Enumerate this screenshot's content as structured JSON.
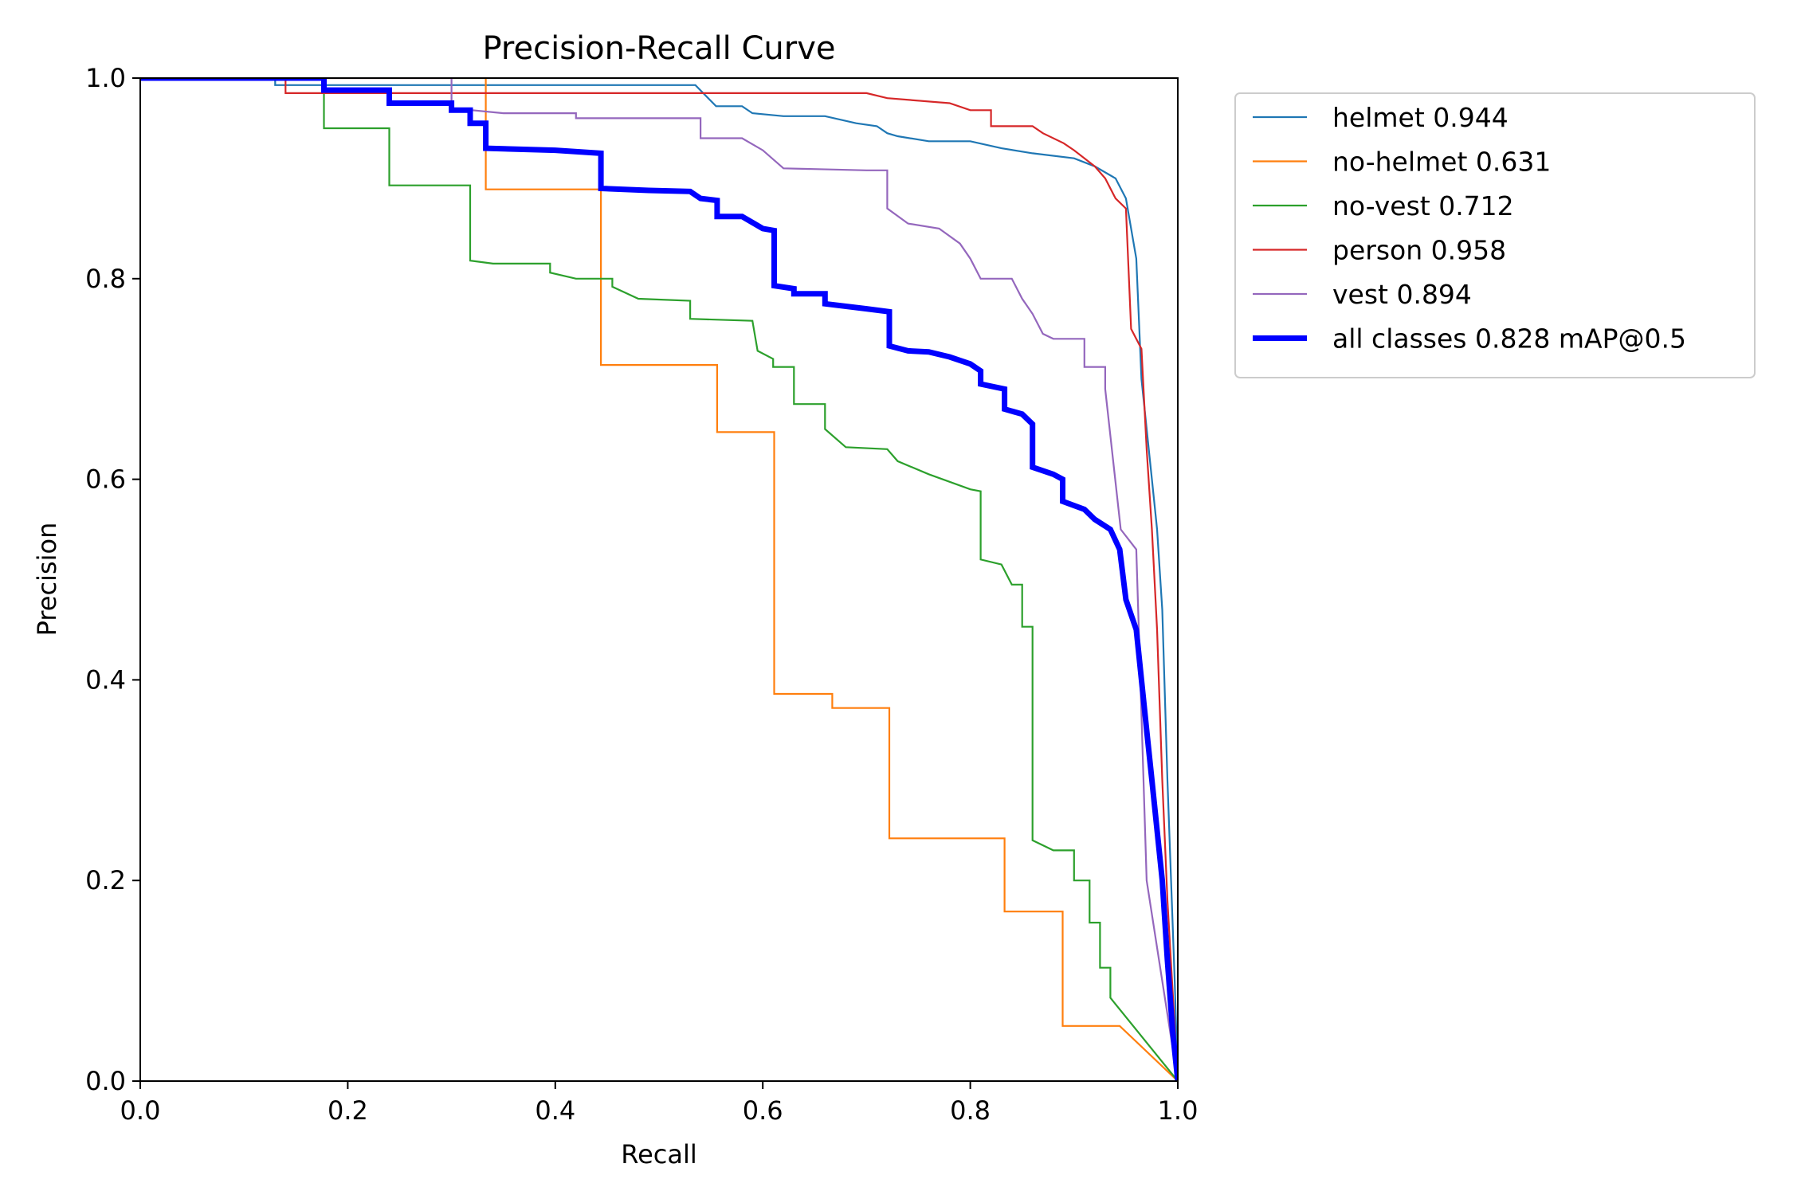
{
  "chart_data": {
    "type": "line",
    "title": "Precision-Recall Curve",
    "xlabel": "Recall",
    "ylabel": "Precision",
    "xlim": [
      0,
      1
    ],
    "ylim": [
      0,
      1
    ],
    "xticks": [
      "0.0",
      "0.2",
      "0.4",
      "0.6",
      "0.8",
      "1.0"
    ],
    "yticks": [
      "0.0",
      "0.2",
      "0.4",
      "0.6",
      "0.8",
      "1.0"
    ],
    "grid": false,
    "legend_position": "outside-top-right",
    "series": [
      {
        "name": "helmet",
        "legend_label": "helmet 0.944",
        "color": "#1f77b4",
        "style": "thin",
        "points": [
          [
            0,
            1
          ],
          [
            0.13,
            1
          ],
          [
            0.13,
            0.993
          ],
          [
            0.535,
            0.993
          ],
          [
            0.555,
            0.972
          ],
          [
            0.58,
            0.972
          ],
          [
            0.59,
            0.965
          ],
          [
            0.62,
            0.962
          ],
          [
            0.66,
            0.962
          ],
          [
            0.69,
            0.955
          ],
          [
            0.71,
            0.952
          ],
          [
            0.72,
            0.945
          ],
          [
            0.73,
            0.942
          ],
          [
            0.76,
            0.937
          ],
          [
            0.8,
            0.937
          ],
          [
            0.83,
            0.93
          ],
          [
            0.86,
            0.925
          ],
          [
            0.9,
            0.92
          ],
          [
            0.92,
            0.912
          ],
          [
            0.94,
            0.9
          ],
          [
            0.95,
            0.88
          ],
          [
            0.96,
            0.82
          ],
          [
            0.965,
            0.7
          ],
          [
            0.975,
            0.6
          ],
          [
            0.98,
            0.55
          ],
          [
            0.985,
            0.47
          ],
          [
            0.99,
            0.3
          ],
          [
            0.997,
            0.1
          ],
          [
            1,
            0
          ]
        ]
      },
      {
        "name": "no-helmet",
        "legend_label": "no-helmet 0.631",
        "color": "#ff7f0e",
        "style": "thin",
        "points": [
          [
            0,
            1
          ],
          [
            0.333,
            1
          ],
          [
            0.333,
            0.889
          ],
          [
            0.444,
            0.889
          ],
          [
            0.444,
            0.714
          ],
          [
            0.556,
            0.714
          ],
          [
            0.556,
            0.647
          ],
          [
            0.611,
            0.647
          ],
          [
            0.611,
            0.386
          ],
          [
            0.667,
            0.386
          ],
          [
            0.667,
            0.372
          ],
          [
            0.722,
            0.372
          ],
          [
            0.722,
            0.242
          ],
          [
            0.833,
            0.242
          ],
          [
            0.833,
            0.169
          ],
          [
            0.889,
            0.169
          ],
          [
            0.889,
            0.055
          ],
          [
            0.944,
            0.055
          ],
          [
            1,
            0
          ]
        ]
      },
      {
        "name": "no-vest",
        "legend_label": "no-vest 0.712",
        "color": "#2ca02c",
        "style": "thin",
        "points": [
          [
            0,
            1
          ],
          [
            0.177,
            1
          ],
          [
            0.177,
            0.95
          ],
          [
            0.24,
            0.95
          ],
          [
            0.24,
            0.893
          ],
          [
            0.318,
            0.893
          ],
          [
            0.318,
            0.818
          ],
          [
            0.34,
            0.815
          ],
          [
            0.395,
            0.815
          ],
          [
            0.395,
            0.806
          ],
          [
            0.42,
            0.8
          ],
          [
            0.455,
            0.8
          ],
          [
            0.455,
            0.792
          ],
          [
            0.48,
            0.78
          ],
          [
            0.53,
            0.778
          ],
          [
            0.53,
            0.76
          ],
          [
            0.59,
            0.758
          ],
          [
            0.595,
            0.728
          ],
          [
            0.61,
            0.72
          ],
          [
            0.61,
            0.712
          ],
          [
            0.63,
            0.712
          ],
          [
            0.63,
            0.675
          ],
          [
            0.66,
            0.675
          ],
          [
            0.66,
            0.65
          ],
          [
            0.68,
            0.632
          ],
          [
            0.72,
            0.63
          ],
          [
            0.73,
            0.618
          ],
          [
            0.76,
            0.605
          ],
          [
            0.8,
            0.59
          ],
          [
            0.81,
            0.588
          ],
          [
            0.81,
            0.52
          ],
          [
            0.83,
            0.515
          ],
          [
            0.84,
            0.495
          ],
          [
            0.85,
            0.495
          ],
          [
            0.85,
            0.453
          ],
          [
            0.86,
            0.453
          ],
          [
            0.86,
            0.24
          ],
          [
            0.88,
            0.23
          ],
          [
            0.9,
            0.23
          ],
          [
            0.9,
            0.2
          ],
          [
            0.915,
            0.2
          ],
          [
            0.915,
            0.158
          ],
          [
            0.925,
            0.158
          ],
          [
            0.925,
            0.113
          ],
          [
            0.935,
            0.113
          ],
          [
            0.935,
            0.083
          ],
          [
            1,
            0
          ]
        ]
      },
      {
        "name": "person",
        "legend_label": "person 0.958",
        "color": "#d62728",
        "style": "thin",
        "points": [
          [
            0,
            1
          ],
          [
            0.14,
            1
          ],
          [
            0.14,
            0.985
          ],
          [
            0.7,
            0.985
          ],
          [
            0.72,
            0.98
          ],
          [
            0.78,
            0.975
          ],
          [
            0.8,
            0.968
          ],
          [
            0.82,
            0.968
          ],
          [
            0.82,
            0.952
          ],
          [
            0.86,
            0.952
          ],
          [
            0.87,
            0.945
          ],
          [
            0.89,
            0.935
          ],
          [
            0.9,
            0.928
          ],
          [
            0.92,
            0.912
          ],
          [
            0.93,
            0.9
          ],
          [
            0.94,
            0.88
          ],
          [
            0.95,
            0.87
          ],
          [
            0.955,
            0.75
          ],
          [
            0.965,
            0.73
          ],
          [
            0.97,
            0.63
          ],
          [
            0.975,
            0.55
          ],
          [
            0.98,
            0.45
          ],
          [
            0.985,
            0.3
          ],
          [
            0.99,
            0.18
          ],
          [
            1,
            0
          ]
        ]
      },
      {
        "name": "vest",
        "legend_label": "vest 0.894",
        "color": "#9467bd",
        "style": "thin",
        "points": [
          [
            0,
            1
          ],
          [
            0.3,
            1
          ],
          [
            0.3,
            0.97
          ],
          [
            0.35,
            0.965
          ],
          [
            0.42,
            0.965
          ],
          [
            0.42,
            0.96
          ],
          [
            0.54,
            0.96
          ],
          [
            0.54,
            0.94
          ],
          [
            0.58,
            0.94
          ],
          [
            0.6,
            0.928
          ],
          [
            0.62,
            0.91
          ],
          [
            0.7,
            0.908
          ],
          [
            0.72,
            0.908
          ],
          [
            0.72,
            0.87
          ],
          [
            0.74,
            0.855
          ],
          [
            0.77,
            0.85
          ],
          [
            0.79,
            0.835
          ],
          [
            0.8,
            0.82
          ],
          [
            0.81,
            0.8
          ],
          [
            0.84,
            0.8
          ],
          [
            0.85,
            0.78
          ],
          [
            0.86,
            0.765
          ],
          [
            0.87,
            0.745
          ],
          [
            0.88,
            0.74
          ],
          [
            0.91,
            0.74
          ],
          [
            0.91,
            0.712
          ],
          [
            0.93,
            0.712
          ],
          [
            0.93,
            0.69
          ],
          [
            0.945,
            0.55
          ],
          [
            0.96,
            0.53
          ],
          [
            0.97,
            0.2
          ],
          [
            1,
            0
          ]
        ]
      },
      {
        "name": "all classes",
        "legend_label": "all classes 0.828 mAP@0.5",
        "color": "#0000ff",
        "style": "thick",
        "points": [
          [
            0,
            1
          ],
          [
            0.177,
            1
          ],
          [
            0.177,
            0.988
          ],
          [
            0.24,
            0.988
          ],
          [
            0.24,
            0.975
          ],
          [
            0.3,
            0.975
          ],
          [
            0.3,
            0.968
          ],
          [
            0.318,
            0.968
          ],
          [
            0.318,
            0.955
          ],
          [
            0.333,
            0.955
          ],
          [
            0.333,
            0.93
          ],
          [
            0.4,
            0.928
          ],
          [
            0.444,
            0.925
          ],
          [
            0.444,
            0.89
          ],
          [
            0.49,
            0.888
          ],
          [
            0.53,
            0.887
          ],
          [
            0.54,
            0.88
          ],
          [
            0.556,
            0.878
          ],
          [
            0.556,
            0.862
          ],
          [
            0.58,
            0.862
          ],
          [
            0.59,
            0.856
          ],
          [
            0.6,
            0.85
          ],
          [
            0.611,
            0.848
          ],
          [
            0.611,
            0.793
          ],
          [
            0.63,
            0.79
          ],
          [
            0.63,
            0.785
          ],
          [
            0.66,
            0.785
          ],
          [
            0.66,
            0.775
          ],
          [
            0.7,
            0.77
          ],
          [
            0.722,
            0.767
          ],
          [
            0.722,
            0.733
          ],
          [
            0.74,
            0.728
          ],
          [
            0.76,
            0.727
          ],
          [
            0.78,
            0.722
          ],
          [
            0.8,
            0.715
          ],
          [
            0.81,
            0.708
          ],
          [
            0.81,
            0.695
          ],
          [
            0.833,
            0.69
          ],
          [
            0.833,
            0.67
          ],
          [
            0.85,
            0.665
          ],
          [
            0.86,
            0.655
          ],
          [
            0.86,
            0.612
          ],
          [
            0.88,
            0.605
          ],
          [
            0.889,
            0.6
          ],
          [
            0.889,
            0.578
          ],
          [
            0.91,
            0.57
          ],
          [
            0.92,
            0.56
          ],
          [
            0.935,
            0.55
          ],
          [
            0.944,
            0.53
          ],
          [
            0.95,
            0.48
          ],
          [
            0.96,
            0.45
          ],
          [
            0.965,
            0.4
          ],
          [
            0.97,
            0.35
          ],
          [
            0.975,
            0.3
          ],
          [
            0.98,
            0.25
          ],
          [
            0.985,
            0.2
          ],
          [
            0.99,
            0.12
          ],
          [
            0.995,
            0.05
          ],
          [
            1,
            0
          ]
        ]
      }
    ]
  }
}
